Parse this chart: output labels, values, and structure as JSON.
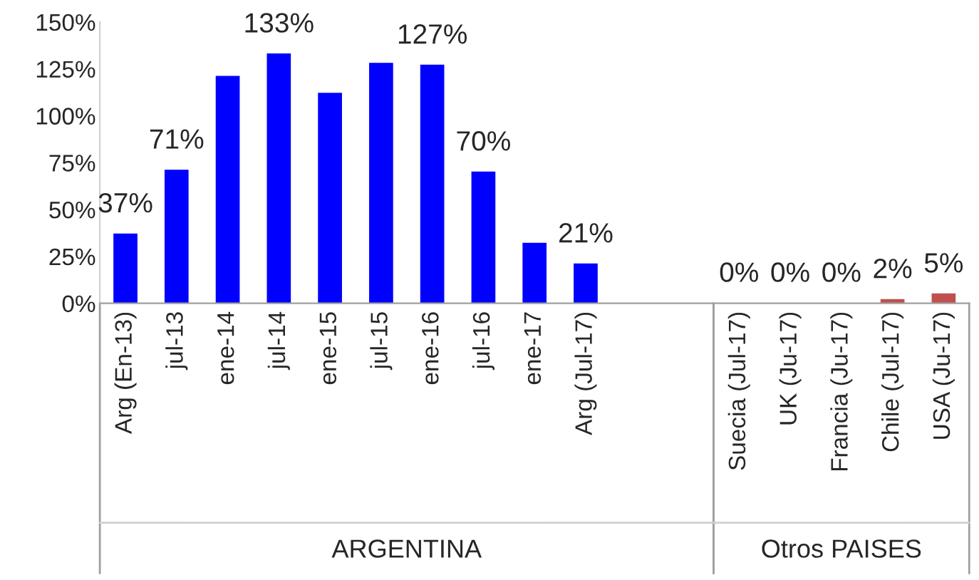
{
  "chart_data": {
    "type": "bar",
    "categories": [
      "Arg (En-13)",
      "jul-13",
      "ene-14",
      "jul-14",
      "ene-15",
      "jul-15",
      "ene-16",
      "jul-16",
      "ene-17",
      "Arg (Jul-17)",
      null,
      null,
      "Suecia (Jul-17)",
      "UK (Ju-17)",
      "Francia (Ju-17)",
      "Chile (Jul-17)",
      "USA (Ju-17)"
    ],
    "values": [
      37,
      71,
      121,
      133,
      112,
      128,
      127,
      70,
      32,
      21,
      null,
      null,
      0,
      0,
      0,
      2,
      5
    ],
    "value_labels": [
      "37%",
      "71%",
      null,
      "133%",
      null,
      null,
      "127%",
      "70%",
      null,
      "21%",
      null,
      null,
      "0%",
      "0%",
      "0%",
      "2%",
      "5%"
    ],
    "colors": [
      "#0000ff",
      "#0000ff",
      "#0000ff",
      "#0000ff",
      "#0000ff",
      "#0000ff",
      "#0000ff",
      "#0000ff",
      "#0000ff",
      "#0000ff",
      "#0000ff",
      "#0000ff",
      "#c0504d",
      "#c0504d",
      "#c0504d",
      "#c0504d",
      "#c0504d"
    ],
    "ylim": [
      0,
      150
    ],
    "yticks": [
      {
        "value": 0,
        "label": "0%"
      },
      {
        "value": 25,
        "label": "25%"
      },
      {
        "value": 50,
        "label": "50%"
      },
      {
        "value": 75,
        "label": "75%"
      },
      {
        "value": 100,
        "label": "100%"
      },
      {
        "value": 125,
        "label": "125%"
      },
      {
        "value": 150,
        "label": "150%"
      }
    ],
    "annotations": [
      "ARGENTINA",
      "Otros PAISES"
    ],
    "grid": false,
    "legend": false
  }
}
